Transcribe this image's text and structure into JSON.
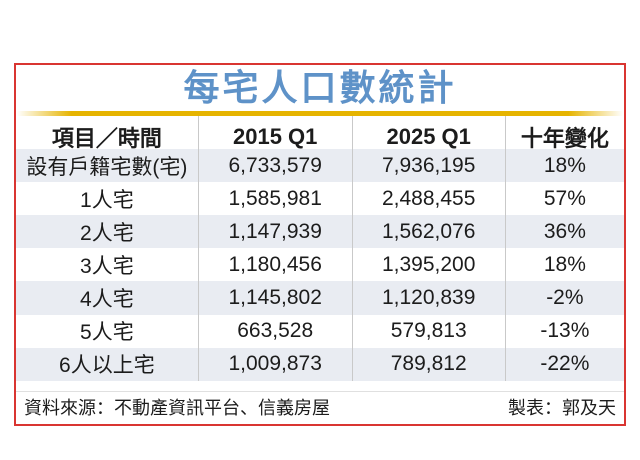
{
  "title": "每宅人口數統計",
  "table": {
    "headers": [
      "項目／時間",
      "2015 Q1",
      "2025 Q1",
      "十年變化"
    ],
    "rows": [
      [
        "設有戶籍宅數(宅)",
        "6,733,579",
        "7,936,195",
        "18%"
      ],
      [
        "1人宅",
        "1,585,981",
        "2,488,455",
        "57%"
      ],
      [
        "2人宅",
        "1,147,939",
        "1,562,076",
        "36%"
      ],
      [
        "3人宅",
        "1,180,456",
        "1,395,200",
        "18%"
      ],
      [
        "4人宅",
        "1,145,802",
        "1,120,839",
        "-2%"
      ],
      [
        "5人宅",
        "663,528",
        "579,813",
        "-13%"
      ],
      [
        "6人以上宅",
        "1,009,873",
        "789,812",
        "-22%"
      ]
    ]
  },
  "footer": {
    "source": "資料來源：不動產資訊平台、信義房屋",
    "credit": "製表：郭及天"
  },
  "colors": {
    "border_red": "#d93531",
    "title_blue": "#5e92c8",
    "underline_gold": "#e6b400",
    "row_stripe": "#e9ecf2",
    "divider_gray": "#c9c9c9"
  },
  "chart_data": {
    "type": "table",
    "title": "每宅人口數統計",
    "columns": [
      "項目／時間",
      "2015 Q1",
      "2025 Q1",
      "十年變化"
    ],
    "rows": [
      {
        "item": "設有戶籍宅數(宅)",
        "2015_q1": 6733579,
        "2025_q1": 7936195,
        "ten_year_change_pct": 18
      },
      {
        "item": "1人宅",
        "2015_q1": 1585981,
        "2025_q1": 2488455,
        "ten_year_change_pct": 57
      },
      {
        "item": "2人宅",
        "2015_q1": 1147939,
        "2025_q1": 1562076,
        "ten_year_change_pct": 36
      },
      {
        "item": "3人宅",
        "2015_q1": 1180456,
        "2025_q1": 1395200,
        "ten_year_change_pct": 18
      },
      {
        "item": "4人宅",
        "2015_q1": 1145802,
        "2025_q1": 1120839,
        "ten_year_change_pct": -2
      },
      {
        "item": "5人宅",
        "2015_q1": 663528,
        "2025_q1": 579813,
        "ten_year_change_pct": -13
      },
      {
        "item": "6人以上宅",
        "2015_q1": 1009873,
        "2025_q1": 789812,
        "ten_year_change_pct": -22
      }
    ],
    "source": "資料來源：不動產資訊平台、信義房屋",
    "credit": "製表：郭及天"
  }
}
